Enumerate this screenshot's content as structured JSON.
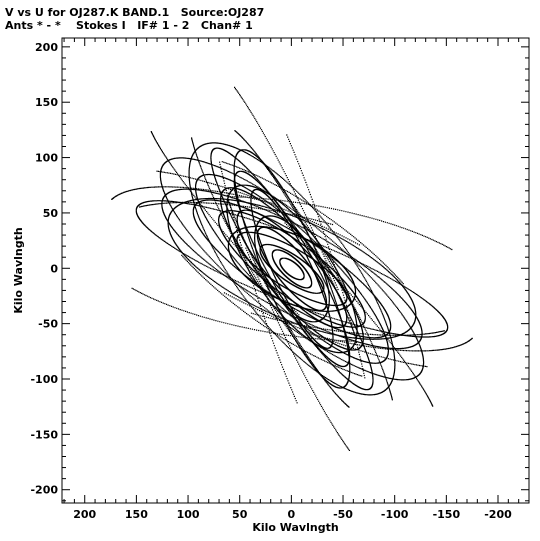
{
  "chart_data": {
    "type": "scatter",
    "title": "V vs U for OJ287.K BAND.1   Source:OJ287",
    "subtitle": "Ants * - *    Stokes I   IF# 1 - 2   Chan# 1",
    "xlabel": "Kilo Wavlngth",
    "ylabel": "Kilo Wavlngth",
    "xlim": [
      222,
      -230
    ],
    "ylim": [
      -212,
      208
    ],
    "xticks": [
      200,
      150,
      100,
      50,
      0,
      -50,
      -100,
      -150,
      -200
    ],
    "yticks": [
      200,
      150,
      100,
      50,
      0,
      -50,
      -100,
      -150,
      -200
    ],
    "xtick_labels": [
      "200",
      "150",
      "100",
      "50",
      "0",
      "-50",
      "-100",
      "-150",
      "-200"
    ],
    "ytick_labels": [
      "200",
      "150",
      "100",
      "50",
      "0",
      "-50",
      "-100",
      "-150",
      "-200"
    ],
    "grid": false,
    "legend": "none",
    "marker_color": "#000000",
    "tracks": [
      {
        "a": 202,
        "b": 47,
        "tilt": 23,
        "ranges": [
          [
            40,
            105
          ],
          [
            220,
            285
          ]
        ]
      },
      {
        "a": 188,
        "b": 52,
        "tilt": 17,
        "ranges": [
          [
            10,
            80
          ],
          [
            190,
            260
          ]
        ]
      },
      {
        "a": 170,
        "b": 58,
        "tilt": 33,
        "ranges": [
          [
            50,
            125
          ],
          [
            230,
            305
          ]
        ]
      },
      {
        "a": 156,
        "b": 44,
        "tilt": 37,
        "ranges": [
          [
            0,
            360
          ]
        ]
      },
      {
        "a": 140,
        "b": 38,
        "tilt": 27,
        "ranges": [
          [
            0,
            360
          ]
        ]
      },
      {
        "a": 122,
        "b": 33,
        "tilt": 42,
        "ranges": [
          [
            0,
            360
          ]
        ]
      },
      {
        "a": 110,
        "b": 30,
        "tilt": 31,
        "ranges": [
          [
            0,
            360
          ]
        ]
      },
      {
        "a": 97,
        "b": 27,
        "tilt": 47,
        "ranges": [
          [
            0,
            360
          ]
        ]
      },
      {
        "a": 85,
        "b": 24,
        "tilt": 35,
        "ranges": [
          [
            0,
            360
          ]
        ]
      },
      {
        "a": 72,
        "b": 21,
        "tilt": 45,
        "ranges": [
          [
            0,
            360
          ]
        ]
      },
      {
        "a": 60,
        "b": 18,
        "tilt": 29,
        "ranges": [
          [
            0,
            360
          ]
        ]
      },
      {
        "a": 48,
        "b": 15,
        "tilt": 49,
        "ranges": [
          [
            0,
            360
          ]
        ]
      },
      {
        "a": 36,
        "b": 12,
        "tilt": 33,
        "ranges": [
          [
            0,
            360
          ]
        ]
      },
      {
        "a": 24,
        "b": 9,
        "tilt": 41,
        "ranges": [
          [
            0,
            360
          ]
        ]
      },
      {
        "a": 14,
        "b": 6,
        "tilt": 37,
        "ranges": [
          [
            0,
            360
          ]
        ]
      },
      {
        "a": 176,
        "b": 34,
        "tilt": 57,
        "ranges": [
          [
            55,
            150
          ],
          [
            235,
            330
          ]
        ]
      },
      {
        "a": 150,
        "b": 29,
        "tilt": 61,
        "ranges": [
          [
            25,
            125
          ],
          [
            205,
            305
          ]
        ]
      },
      {
        "a": 132,
        "b": 25,
        "tilt": 55,
        "ranges": [
          [
            0,
            360
          ]
        ]
      },
      {
        "a": 118,
        "b": 28,
        "tilt": 65,
        "ranges": [
          [
            0,
            360
          ]
        ]
      },
      {
        "a": 102,
        "b": 22,
        "tilt": 59,
        "ranges": [
          [
            0,
            360
          ]
        ]
      },
      {
        "a": 80,
        "b": 18,
        "tilt": 63,
        "ranges": [
          [
            0,
            360
          ]
        ]
      },
      {
        "a": 232,
        "b": 40,
        "tilt": 71,
        "ranges": [
          [
            60,
            120
          ],
          [
            240,
            300
          ]
        ]
      },
      {
        "a": 210,
        "b": 33,
        "tilt": 65,
        "ranges": [
          [
            35,
            100
          ],
          [
            215,
            280
          ]
        ]
      },
      {
        "a": 198,
        "b": 60,
        "tilt": 8,
        "ranges": [
          [
            70,
            140
          ],
          [
            250,
            320
          ]
        ]
      },
      {
        "a": 180,
        "b": 48,
        "tilt": 12,
        "ranges": [
          [
            30,
            100
          ],
          [
            210,
            280
          ]
        ]
      },
      {
        "a": 160,
        "b": 30,
        "tilt": 20,
        "ranges": [
          [
            0,
            360
          ]
        ]
      },
      {
        "a": 142,
        "b": 52,
        "tilt": 50,
        "ranges": [
          [
            0,
            360
          ]
        ]
      },
      {
        "a": 128,
        "b": 45,
        "tilt": 22,
        "ranges": [
          [
            0,
            360
          ]
        ]
      },
      {
        "a": 92,
        "b": 35,
        "tilt": 52,
        "ranges": [
          [
            0,
            360
          ]
        ]
      },
      {
        "a": 66,
        "b": 30,
        "tilt": 24,
        "ranges": [
          [
            0,
            360
          ]
        ]
      },
      {
        "a": 54,
        "b": 26,
        "tilt": 58,
        "ranges": [
          [
            0,
            360
          ]
        ]
      },
      {
        "a": 196,
        "b": 25,
        "tilt": 45,
        "ranges": [
          [
            80,
            160
          ],
          [
            260,
            340
          ]
        ]
      }
    ]
  }
}
